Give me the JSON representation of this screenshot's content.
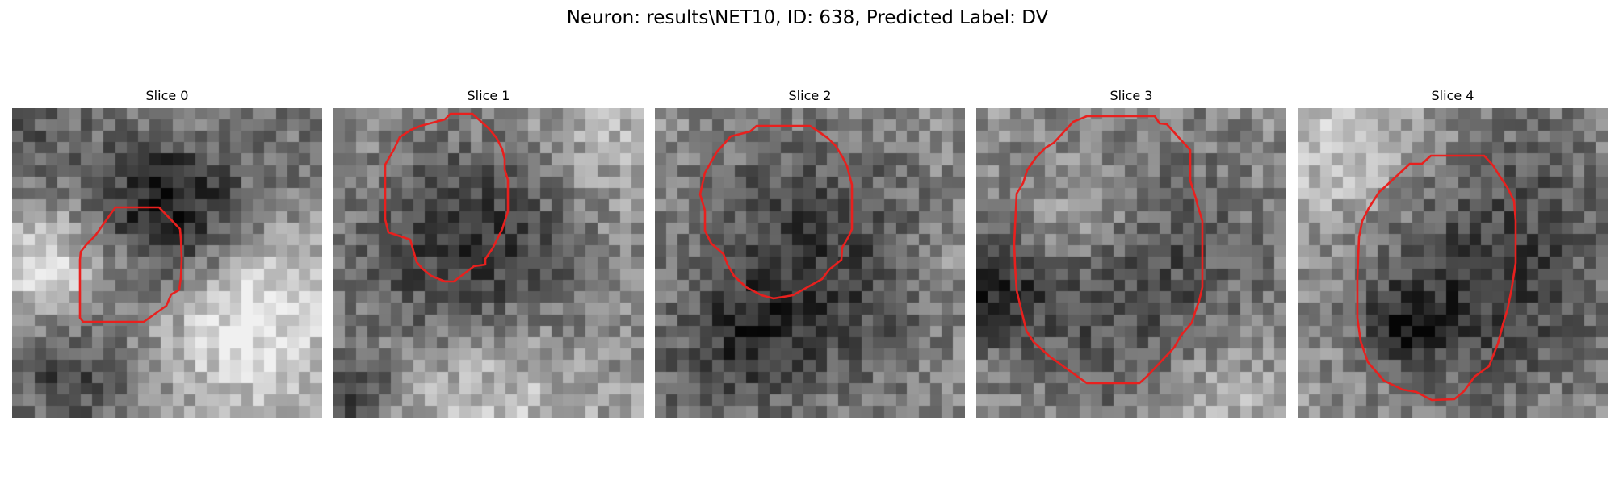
{
  "figure": {
    "title": "Neuron: results\\NET10, ID: 638, Predicted Label: DV",
    "contour_color": "#e8201e"
  },
  "slices": [
    {
      "title": "Slice 0"
    },
    {
      "title": "Slice 1"
    },
    {
      "title": "Slice 2"
    },
    {
      "title": "Slice 3"
    },
    {
      "title": "Slice 4"
    }
  ]
}
